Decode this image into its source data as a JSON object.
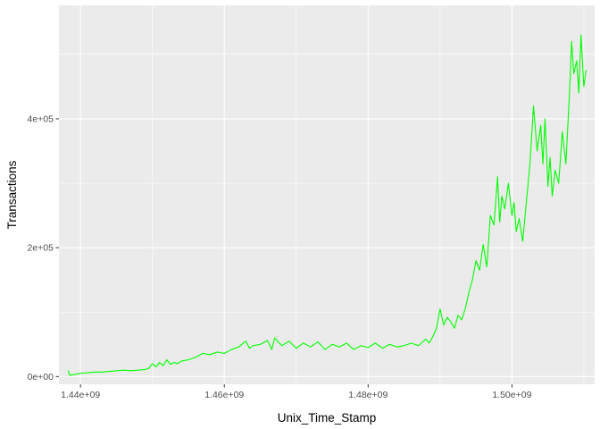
{
  "chart_data": {
    "type": "line",
    "title": "",
    "xlabel": "Unix_Time_Stamp",
    "ylabel": "Transactions",
    "xlim": [
      1437000000,
      1511500000
    ],
    "ylim": [
      -12000,
      576000
    ],
    "x_ticks": [
      1440000000,
      1460000000,
      1480000000,
      1500000000
    ],
    "x_tick_labels": [
      "1.44e+09",
      "1.46e+09",
      "1.48e+09",
      "1.50e+09"
    ],
    "y_ticks": [
      0,
      200000,
      400000
    ],
    "y_tick_labels": [
      "0e+00",
      "2e+05",
      "4e+05"
    ],
    "grid": true,
    "legend": "none",
    "colors": {
      "line": "#00ff00",
      "panel": "#ebebeb",
      "grid": "#ffffff"
    },
    "series": [
      {
        "x": [
          1438300000,
          1438500000,
          1439000000,
          1440000000,
          1441000000,
          1442000000,
          1443000000,
          1444000000,
          1445000000,
          1446000000,
          1447000000,
          1448000000,
          1449000000,
          1449500000,
          1450000000,
          1450500000,
          1451000000,
          1451500000,
          1452000000,
          1452500000,
          1453000000,
          1453500000,
          1454000000,
          1455000000,
          1456000000,
          1457000000,
          1458000000,
          1459000000,
          1460000000,
          1461000000,
          1462000000,
          1463000000,
          1463500000,
          1464000000,
          1465000000,
          1466000000,
          1466600000,
          1467000000,
          1468000000,
          1469000000,
          1470000000,
          1471000000,
          1472000000,
          1473000000,
          1474000000,
          1475000000,
          1476000000,
          1477000000,
          1478000000,
          1479000000,
          1480000000,
          1481000000,
          1482000000,
          1483000000,
          1484000000,
          1485000000,
          1486000000,
          1487000000,
          1488000000,
          1488500000,
          1489000000,
          1489500000,
          1490000000,
          1490500000,
          1491000000,
          1491500000,
          1492000000,
          1492500000,
          1493000000,
          1493500000,
          1494000000,
          1494500000,
          1495000000,
          1495500000,
          1496000000,
          1496500000,
          1497000000,
          1497500000,
          1498000000,
          1498300000,
          1498600000,
          1499000000,
          1499500000,
          1500000000,
          1500300000,
          1500600000,
          1501000000,
          1501500000,
          1502000000,
          1502500000,
          1503000000,
          1503500000,
          1504000000,
          1504300000,
          1504600000,
          1505000000,
          1505300000,
          1505600000,
          1506000000,
          1506500000,
          1507000000,
          1507500000,
          1508000000,
          1508300000,
          1508600000,
          1509000000,
          1509300000,
          1509600000,
          1510000000,
          1510300000
        ],
        "y": [
          9000,
          2000,
          3000,
          5000,
          6000,
          7000,
          7000,
          8000,
          9000,
          10000,
          9000,
          10000,
          11000,
          13000,
          20000,
          15000,
          22000,
          17000,
          26000,
          19000,
          22000,
          20000,
          24000,
          26000,
          30000,
          36000,
          34000,
          38000,
          36000,
          42000,
          46000,
          55000,
          44000,
          48000,
          50000,
          56000,
          42000,
          60000,
          48000,
          55000,
          44000,
          52000,
          46000,
          54000,
          42000,
          50000,
          46000,
          52000,
          42000,
          48000,
          45000,
          52000,
          44000,
          50000,
          46000,
          48000,
          52000,
          48000,
          58000,
          52000,
          62000,
          75000,
          105000,
          80000,
          92000,
          85000,
          75000,
          95000,
          88000,
          105000,
          130000,
          150000,
          180000,
          165000,
          205000,
          170000,
          250000,
          235000,
          310000,
          240000,
          280000,
          260000,
          300000,
          250000,
          270000,
          225000,
          245000,
          210000,
          270000,
          330000,
          420000,
          350000,
          390000,
          330000,
          400000,
          295000,
          340000,
          280000,
          320000,
          300000,
          380000,
          330000,
          440000,
          520000,
          470000,
          490000,
          440000,
          530000,
          450000,
          475000
        ]
      }
    ]
  }
}
